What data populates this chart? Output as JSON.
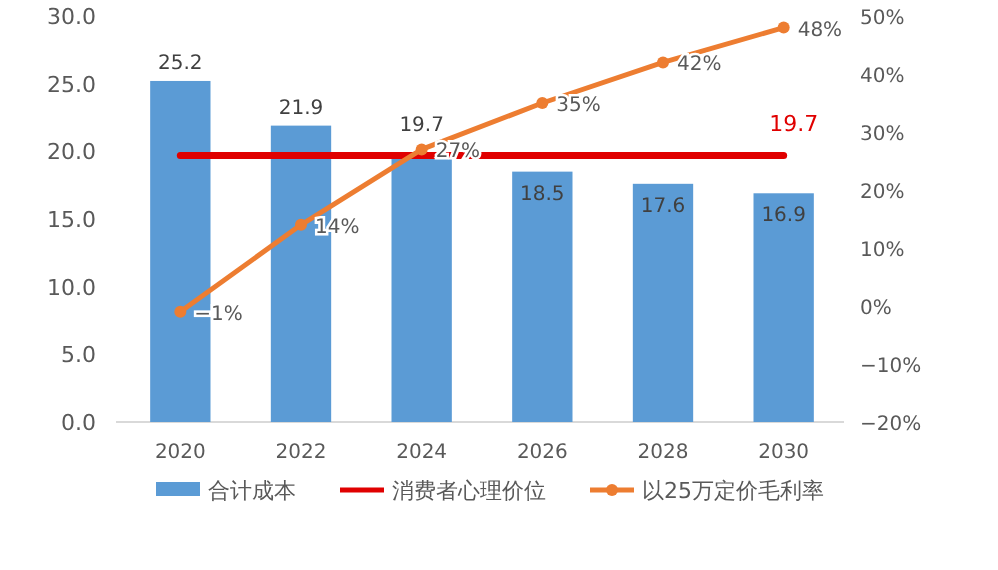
{
  "chart_data": {
    "type": "bar",
    "categories": [
      "2020",
      "2022",
      "2024",
      "2026",
      "2028",
      "2030"
    ],
    "series": [
      {
        "name": "合计成本",
        "color": "#5b9bd5",
        "values": [
          25.2,
          21.9,
          19.7,
          18.5,
          17.6,
          16.9
        ],
        "value_labels": [
          "25.2",
          "21.9",
          "19.7",
          "18.5",
          "17.6",
          "16.9"
        ]
      },
      {
        "name": "消费者心理价位",
        "type": "line",
        "color": "#e00000",
        "marker": "none",
        "values": [
          19.7,
          19.7,
          19.7,
          19.7,
          19.7,
          19.7
        ],
        "value_labels": [
          null,
          null,
          null,
          null,
          null,
          "19.7"
        ]
      },
      {
        "name": "以25万定价毛利率",
        "type": "line",
        "axis": "y2",
        "color": "#ed7d31",
        "marker": "circle",
        "values": [
          -1,
          14,
          27,
          35,
          42,
          48
        ],
        "value_labels": [
          "−1%",
          "14%",
          "27%",
          "35%",
          "42%",
          "48%"
        ]
      }
    ],
    "ylim": [
      0,
      30
    ],
    "yticks": [
      {
        "value": 0,
        "label": "0.0"
      },
      {
        "value": 5,
        "label": "5.0"
      },
      {
        "value": 10,
        "label": "10.0"
      },
      {
        "value": 15,
        "label": "15.0"
      },
      {
        "value": 20,
        "label": "20.0"
      },
      {
        "value": 25,
        "label": "25.0"
      },
      {
        "value": 30,
        "label": "30.0"
      }
    ],
    "y2lim": [
      -20,
      50
    ],
    "y2ticks": [
      {
        "value": -20,
        "label": "−20%"
      },
      {
        "value": -10,
        "label": "−10%"
      },
      {
        "value": 0,
        "label": "0%"
      },
      {
        "value": 10,
        "label": "10%"
      },
      {
        "value": 20,
        "label": "20%"
      },
      {
        "value": 30,
        "label": "30%"
      },
      {
        "value": 40,
        "label": "40%"
      },
      {
        "value": 50,
        "label": "50%"
      }
    ],
    "grid": false,
    "legend": "bottom"
  }
}
